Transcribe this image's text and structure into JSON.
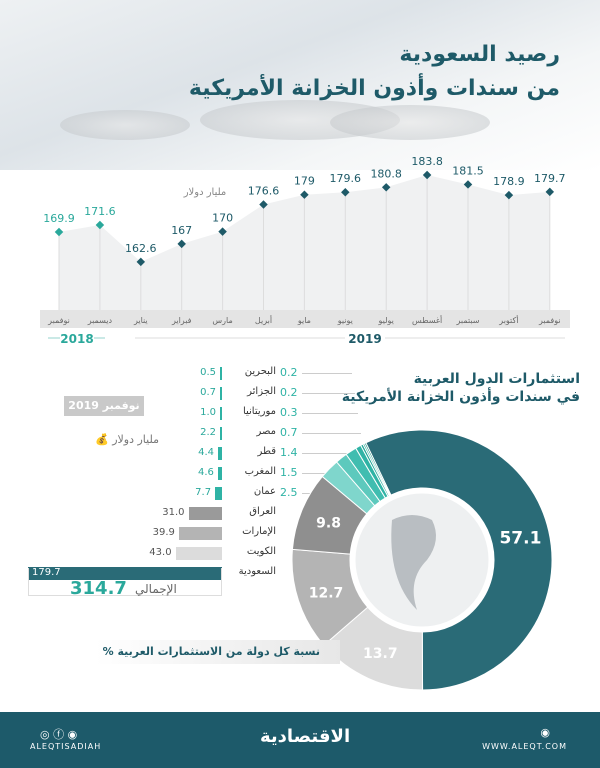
{
  "header": {
    "title_line1": "رصيد السعودية",
    "title_line2": "من سندات وأذون الخزانة الأمريكية"
  },
  "chart_data": [
    {
      "type": "line",
      "unit_label": "مليار دولار",
      "categories": [
        "نوفمبر",
        "ديسمبر",
        "يناير",
        "فبراير",
        "مارس",
        "أبريل",
        "مايو",
        "يونيو",
        "يوليو",
        "أغسطس",
        "سبتمبر",
        "أكتوبر",
        "نوفمبر"
      ],
      "values": [
        169.9,
        171.6,
        162.6,
        167,
        170,
        176.6,
        179,
        179.6,
        180.8,
        183.8,
        181.5,
        178.9,
        179.7
      ],
      "value_labels": [
        "169.9",
        "171.6",
        "162.6",
        "167",
        "170",
        "176.6",
        "179",
        "179.6",
        "180.8",
        "183.8",
        "181.5",
        "178.9",
        "179.7"
      ],
      "years": [
        {
          "label": "2018",
          "count": 2
        },
        {
          "label": "2019",
          "count": 11
        }
      ],
      "colors": {
        "2018": "#2aa89b",
        "2019": "#1e5a68"
      }
    },
    {
      "type": "bar",
      "title_line1": "استثمارات الدول العربية",
      "title_line2": "في سندات وأذون الخزانة الأمريكية",
      "date_badge": "نوفمبر 2019",
      "unit_label": "مليار دولار",
      "categories": [
        "البحرين",
        "الجزائر",
        "موريتانيا",
        "مصر",
        "قطر",
        "المغرب",
        "عمان",
        "العراق",
        "الإمارات",
        "الكويت",
        "السعودية"
      ],
      "values": [
        0.5,
        0.7,
        1.0,
        2.2,
        4.4,
        4.6,
        7.7,
        31.0,
        39.9,
        43.0,
        179.7
      ],
      "value_labels": [
        "0.5",
        "0.7",
        "1.0",
        "2.2",
        "4.4",
        "4.6",
        "7.7",
        "31.0",
        "39.9",
        "43.0",
        "179.7"
      ],
      "total_label": "الإجمالي",
      "total": "314.7"
    },
    {
      "type": "pie",
      "note": "نسبة كل دولة من الاستثمارات العربية %",
      "categories": [
        "السعودية",
        "الكويت",
        "الإمارات",
        "العراق",
        "عمان",
        "المغرب",
        "قطر",
        "مصر",
        "موريتانيا",
        "الجزائر",
        "البحرين"
      ],
      "values": [
        57.1,
        13.7,
        12.7,
        9.8,
        2.5,
        1.5,
        1.4,
        0.7,
        0.3,
        0.2,
        0.2
      ],
      "value_labels": [
        "57.1",
        "13.7",
        "12.7",
        "9.8",
        "2.5",
        "1.5",
        "1.4",
        "0.7",
        "0.3",
        "0.2",
        "0.2"
      ],
      "colors": [
        "#2a6b77",
        "#dcdcdc",
        "#b4b4b4",
        "#8f8f8f",
        "#7fd6cc",
        "#5dc9bd",
        "#40bdb0",
        "#2fb3a5",
        "#23a798",
        "#1a9c8d",
        "#12917f"
      ]
    }
  ],
  "footer": {
    "handle": "ALEQTISADIAH",
    "logo": "الاقتصادية",
    "site": "WWW.ALEQT.COM"
  }
}
